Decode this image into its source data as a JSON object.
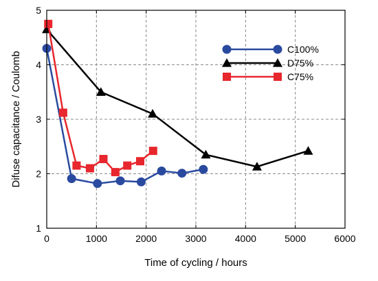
{
  "chart_data": {
    "type": "line",
    "xlabel": "Time of cycling  /  hours",
    "ylabel": "Difuse capacitance  /  Coulomb",
    "xlim": [
      0,
      6000
    ],
    "ylim": [
      1,
      5
    ],
    "xticks": [
      0,
      1000,
      2000,
      3000,
      4000,
      5000,
      6000
    ],
    "yticks": [
      1,
      2,
      3,
      4,
      5
    ],
    "grid": true,
    "grid_style": "dashed",
    "legend_position": "top-right",
    "series": [
      {
        "name": "C100%",
        "color": "#2a4aa0",
        "marker": "circle",
        "x": [
          0,
          500,
          1020,
          1480,
          1900,
          2310,
          2720,
          3150
        ],
        "y": [
          4.3,
          1.91,
          1.82,
          1.87,
          1.85,
          2.05,
          2.01,
          2.08
        ]
      },
      {
        "name": "D75%",
        "color": "#000000",
        "marker": "triangle",
        "x": [
          0,
          1090,
          2130,
          3200,
          4230,
          5260
        ],
        "y": [
          4.65,
          3.5,
          3.1,
          2.35,
          2.13,
          2.42
        ]
      },
      {
        "name": "C75%",
        "color": "#e8262d",
        "marker": "square",
        "x": [
          30,
          330,
          600,
          870,
          1140,
          1380,
          1620,
          1880,
          2140
        ],
        "y": [
          4.75,
          3.12,
          2.15,
          2.1,
          2.27,
          2.03,
          2.15,
          2.23,
          2.42
        ]
      }
    ]
  }
}
